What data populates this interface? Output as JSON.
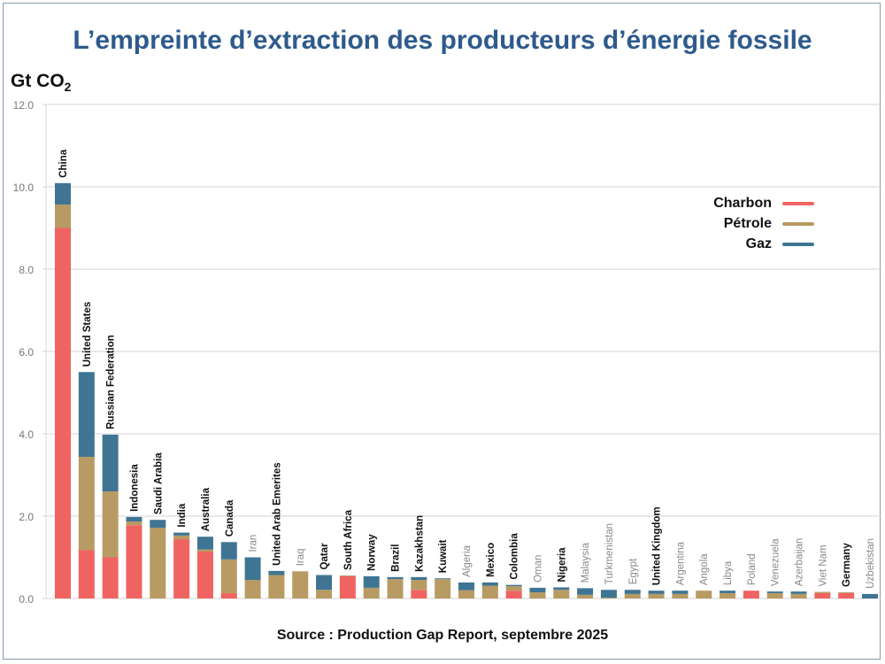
{
  "chart_data": {
    "type": "bar",
    "stacked": true,
    "title": "L’empreinte d’extraction des producteurs d’énergie fossile",
    "ylabel": "Gt CO",
    "ylabel_subscript": "2",
    "source": "Source : Production Gap Report, septembre 2025",
    "ylim": [
      0,
      12
    ],
    "yticks": [
      "0.0",
      "2.0",
      "4.0",
      "6.0",
      "8.0",
      "10.0",
      "12.0"
    ],
    "grid": true,
    "legend_placement": "top-right",
    "categories": [
      "China",
      "United States",
      "Russian Federation",
      "Indonesia",
      "Saudi Arabia",
      "India",
      "Australia",
      "Canada",
      "Iran",
      "United Arab Emerites",
      "Iraq",
      "Qatar",
      "South Africa",
      "Norway",
      "Brazil",
      "Kazakhstan",
      "Kuwait",
      "Algeria",
      "Mexico",
      "Colombia",
      "Oman",
      "Nigeria",
      "Malaysia",
      "Turkmenistan",
      "Egypt",
      "United Kingdom",
      "Argentina",
      "Angola",
      "Libya",
      "Poland",
      "Venezuela",
      "Azerbaijan",
      "Viet Nam",
      "Germany",
      "Uzbekistan"
    ],
    "highlighted": [
      true,
      true,
      true,
      true,
      true,
      true,
      true,
      true,
      false,
      true,
      false,
      true,
      true,
      true,
      true,
      true,
      true,
      false,
      true,
      true,
      false,
      true,
      false,
      false,
      false,
      true,
      false,
      false,
      false,
      false,
      false,
      false,
      false,
      true,
      false
    ],
    "series": [
      {
        "name": "Charbon",
        "color": "#ef6461",
        "values": [
          9.0,
          1.18,
          1.0,
          1.78,
          0,
          1.44,
          1.14,
          0.13,
          0,
          0,
          0,
          0,
          0.54,
          0,
          0,
          0.21,
          0,
          0,
          0,
          0.19,
          0,
          0,
          0,
          0,
          0,
          0,
          0,
          0,
          0,
          0.19,
          0,
          0,
          0.13,
          0.13,
          0
        ]
      },
      {
        "name": "Pétrole",
        "color": "#b89a63",
        "values": [
          0.57,
          2.26,
          1.6,
          0.09,
          1.72,
          0.09,
          0.05,
          0.82,
          0.45,
          0.57,
          0.66,
          0.21,
          0.02,
          0.26,
          0.47,
          0.24,
          0.47,
          0.2,
          0.31,
          0.11,
          0.15,
          0.21,
          0.09,
          0.02,
          0.11,
          0.11,
          0.11,
          0.19,
          0.13,
          0,
          0.13,
          0.11,
          0.03,
          0.02,
          0
        ]
      },
      {
        "name": "Gaz",
        "color": "#3f7593",
        "values": [
          0.52,
          2.06,
          1.38,
          0.11,
          0.19,
          0.07,
          0.31,
          0.42,
          0.55,
          0.1,
          0,
          0.36,
          0,
          0.28,
          0.05,
          0.07,
          0.02,
          0.19,
          0.08,
          0.03,
          0.11,
          0.06,
          0.16,
          0.19,
          0.1,
          0.08,
          0.08,
          0,
          0.06,
          0,
          0.04,
          0.06,
          0,
          0,
          0.11
        ]
      }
    ]
  }
}
